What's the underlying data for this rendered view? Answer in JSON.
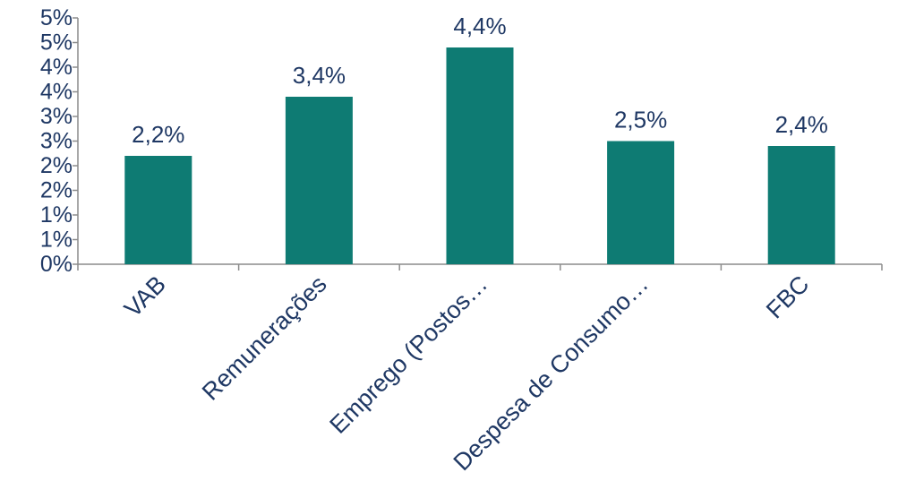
{
  "chart_data": {
    "type": "bar",
    "categories": [
      "VAB",
      "Remunerações",
      "Emprego (Postos…",
      "Despesa de Consumo…",
      "FBC"
    ],
    "values": [
      2.2,
      3.4,
      4.4,
      2.5,
      2.4
    ],
    "data_labels": [
      "2,2%",
      "3,4%",
      "4,4%",
      "2,5%",
      "2,4%"
    ],
    "y_tick_labels": [
      "0%",
      "1%",
      "1%",
      "2%",
      "2%",
      "3%",
      "3%",
      "4%",
      "4%",
      "5%",
      "5%"
    ],
    "ylim": [
      0,
      5
    ],
    "bar_color": "#0e7b73",
    "grid": false,
    "legend": "none"
  }
}
